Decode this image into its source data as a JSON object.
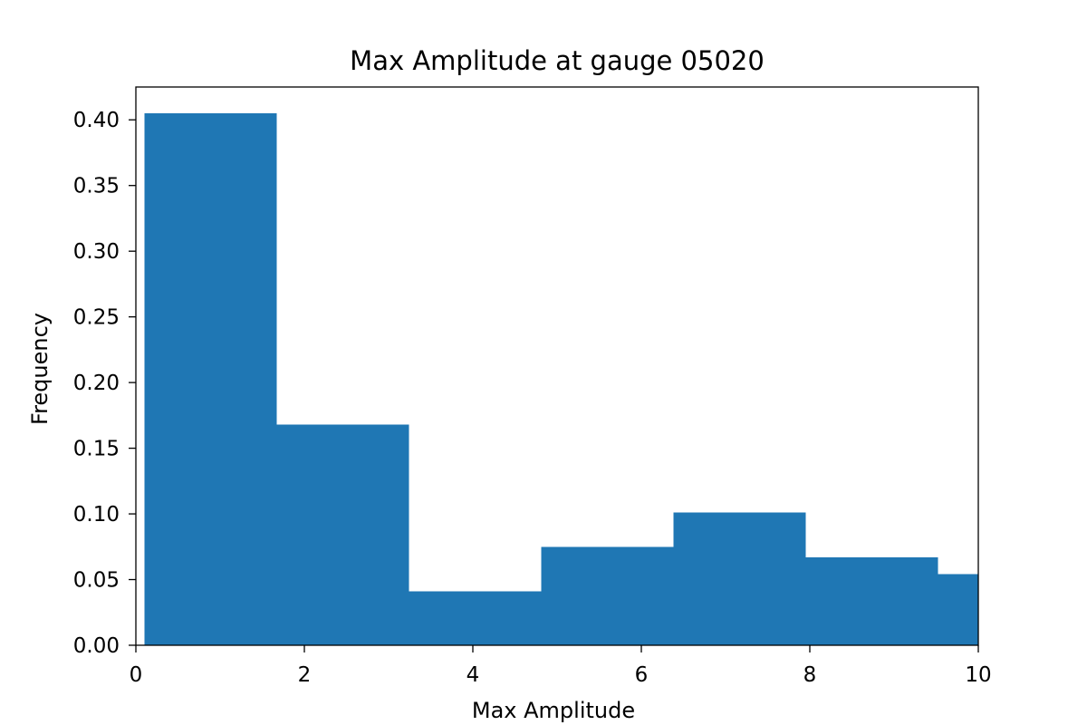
{
  "chart_data": {
    "type": "bar",
    "title": "Max Amplitude at gauge 05020",
    "xlabel": "Max Amplitude",
    "ylabel": "Frequency",
    "xlim": [
      0,
      10
    ],
    "ylim": [
      0,
      0.425
    ],
    "bar_color": "#1f77b4",
    "grid": false,
    "bins": [
      {
        "x0": 0.1,
        "x1": 1.67,
        "value": 0.405
      },
      {
        "x0": 1.67,
        "x1": 3.24,
        "value": 0.168
      },
      {
        "x0": 3.24,
        "x1": 4.81,
        "value": 0.041
      },
      {
        "x0": 4.81,
        "x1": 6.38,
        "value": 0.075
      },
      {
        "x0": 6.38,
        "x1": 7.95,
        "value": 0.101
      },
      {
        "x0": 7.95,
        "x1": 9.52,
        "value": 0.067
      },
      {
        "x0": 9.52,
        "x1": 10.0,
        "value": 0.054
      }
    ],
    "x_ticks": [
      {
        "value": 0,
        "label": "0"
      },
      {
        "value": 2,
        "label": "2"
      },
      {
        "value": 4,
        "label": "4"
      },
      {
        "value": 6,
        "label": "6"
      },
      {
        "value": 8,
        "label": "8"
      },
      {
        "value": 10,
        "label": "10"
      }
    ],
    "y_ticks": [
      {
        "value": 0.0,
        "label": "0.00"
      },
      {
        "value": 0.05,
        "label": "0.05"
      },
      {
        "value": 0.1,
        "label": "0.10"
      },
      {
        "value": 0.15,
        "label": "0.15"
      },
      {
        "value": 0.2,
        "label": "0.20"
      },
      {
        "value": 0.25,
        "label": "0.25"
      },
      {
        "value": 0.3,
        "label": "0.30"
      },
      {
        "value": 0.35,
        "label": "0.35"
      },
      {
        "value": 0.4,
        "label": "0.40"
      }
    ]
  }
}
